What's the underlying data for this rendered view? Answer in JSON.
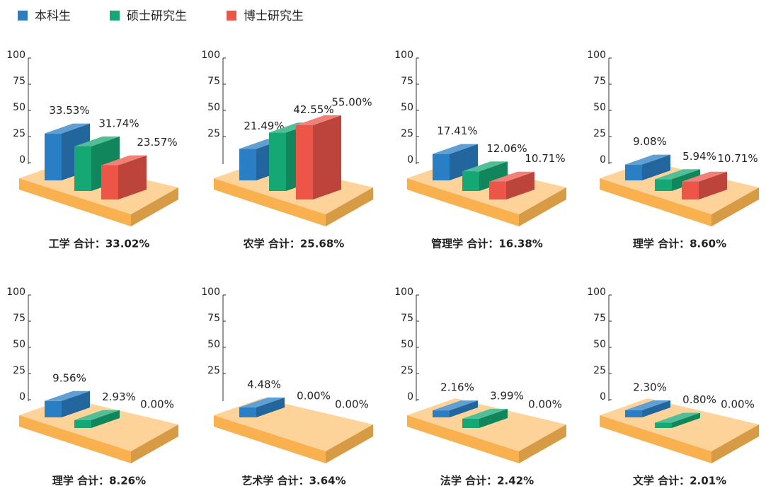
{
  "legend": [
    {
      "name": "本科生",
      "color": "#2a7fc4"
    },
    {
      "name": "硕士研究生",
      "color": "#15a874"
    },
    {
      "name": "博士研究生",
      "color": "#ec5548"
    }
  ],
  "chart_data": [
    {
      "type": "bar3d",
      "title": "工学  合计：33.02%",
      "ylim": [
        0,
        100
      ],
      "yticks": [
        0,
        25,
        50,
        75,
        100
      ],
      "series": [
        {
          "values": [
            33.53
          ],
          "value_labels": [
            "33.53%"
          ]
        },
        {
          "values": [
            31.74
          ],
          "value_labels": [
            "31.74%"
          ]
        },
        {
          "values": [
            23.57
          ],
          "value_labels": [
            "23.57%"
          ]
        }
      ]
    },
    {
      "type": "bar3d",
      "title": "农学  合计：25.68%",
      "ylim": [
        0,
        100
      ],
      "yticks": [
        25,
        50,
        75,
        100
      ],
      "series": [
        {
          "values": [
            21.49
          ],
          "value_labels": [
            "21.49%"
          ]
        },
        {
          "values": [
            42.55
          ],
          "value_labels": [
            "42.55%"
          ]
        },
        {
          "values": [
            55
          ],
          "value_labels": [
            "55.00%"
          ]
        }
      ]
    },
    {
      "type": "bar3d",
      "title": "管理学  合计：16.38%",
      "ylim": [
        0,
        100
      ],
      "yticks": [
        0,
        25,
        50,
        75,
        100
      ],
      "series": [
        {
          "values": [
            17.41
          ],
          "value_labels": [
            "17.41%"
          ]
        },
        {
          "values": [
            12.06
          ],
          "value_labels": [
            "12.06%"
          ]
        },
        {
          "values": [
            10.71
          ],
          "value_labels": [
            "10.71%"
          ]
        }
      ]
    },
    {
      "type": "bar3d",
      "title": "理学  合计：8.60%",
      "ylim": [
        0,
        100
      ],
      "yticks": [
        0,
        25,
        50,
        75,
        100
      ],
      "series": [
        {
          "values": [
            9.08
          ],
          "value_labels": [
            "9.08%"
          ]
        },
        {
          "values": [
            5.94
          ],
          "value_labels": [
            "5.94%"
          ]
        },
        {
          "values": [
            10.71
          ],
          "value_labels": [
            "10.71%"
          ]
        }
      ]
    },
    {
      "type": "bar3d",
      "title": "理学  合计：8.26%",
      "ylim": [
        0,
        100
      ],
      "yticks": [
        0,
        25,
        50,
        75,
        100
      ],
      "series": [
        {
          "values": [
            9.56
          ],
          "value_labels": [
            "9.56%"
          ]
        },
        {
          "values": [
            2.93
          ],
          "value_labels": [
            "2.93%"
          ]
        },
        {
          "values": [
            0
          ],
          "value_labels": [
            "0.00%"
          ]
        }
      ]
    },
    {
      "type": "bar3d",
      "title": "艺术学  合计：3.64%",
      "ylim": [
        0,
        100
      ],
      "yticks": [
        25,
        50,
        75,
        100
      ],
      "series": [
        {
          "values": [
            4.48
          ],
          "value_labels": [
            "4.48%"
          ]
        },
        {
          "values": [
            0
          ],
          "value_labels": [
            "0.00%"
          ]
        },
        {
          "values": [
            0
          ],
          "value_labels": [
            "0.00%"
          ]
        }
      ]
    },
    {
      "type": "bar3d",
      "title": "法学  合计：2.42%",
      "ylim": [
        0,
        100
      ],
      "yticks": [
        0,
        25,
        50,
        75,
        100
      ],
      "series": [
        {
          "values": [
            2.16
          ],
          "value_labels": [
            "2.16%"
          ]
        },
        {
          "values": [
            3.99
          ],
          "value_labels": [
            "3.99%"
          ]
        },
        {
          "values": [
            0
          ],
          "value_labels": [
            "0.00%"
          ]
        }
      ]
    },
    {
      "type": "bar3d",
      "title": "文学  合计：2.01%",
      "ylim": [
        0,
        100
      ],
      "yticks": [
        0,
        25,
        50,
        75,
        100
      ],
      "series": [
        {
          "values": [
            2.3
          ],
          "value_labels": [
            "2.30%"
          ]
        },
        {
          "values": [
            0.8
          ],
          "value_labels": [
            "0.80%"
          ]
        },
        {
          "values": [
            0
          ],
          "value_labels": [
            "0.00%"
          ]
        }
      ]
    }
  ]
}
